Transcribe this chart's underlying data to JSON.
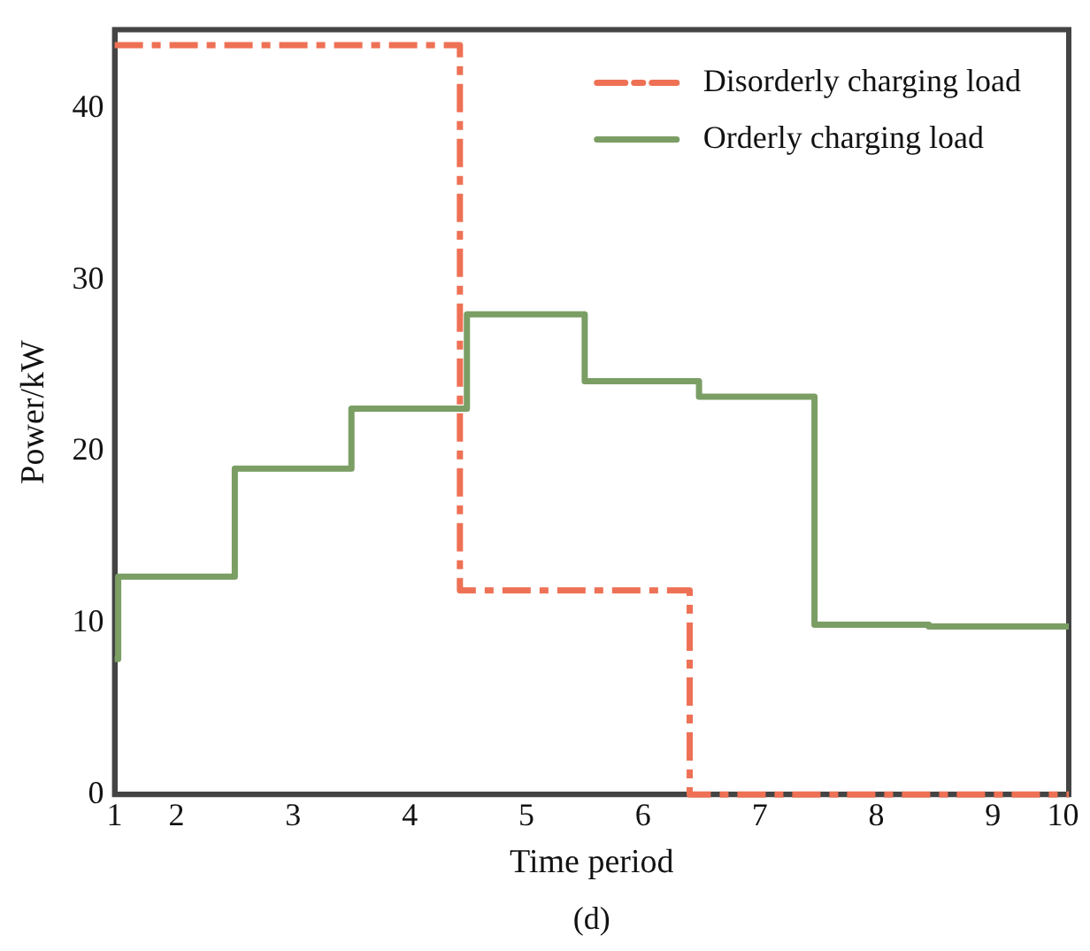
{
  "chart_data": {
    "type": "step",
    "xlabel": "Time period",
    "ylabel": "Power/kW",
    "annotations": [
      "(d)"
    ],
    "xlim": [
      1.47,
      9.65
    ],
    "xticks": [
      {
        "value": 1.47,
        "label": "1"
      },
      2,
      3,
      4,
      5,
      6,
      7,
      8,
      9,
      {
        "value": 9.6,
        "label": "10"
      }
    ],
    "ylim": [
      0,
      44.6
    ],
    "yticks": [
      0,
      10,
      20,
      30,
      40
    ],
    "grid": false,
    "legend": "top right",
    "marker": "none",
    "series": [
      {
        "name": "Disorderly charging load",
        "color": "#ee7155",
        "line_style": "dashdot",
        "x": [
          1.47,
          4.43,
          6.4,
          9.65
        ],
        "values": [
          43.7,
          11.9,
          0,
          0
        ]
      },
      {
        "name": "Orderly charging load",
        "color": "#7a9e64",
        "line_style": "solid",
        "x": [
          1.47,
          1.5,
          2.5,
          3.5,
          4.49,
          5.5,
          6.48,
          7.47,
          8.45,
          9.65
        ],
        "values": [
          7.9,
          12.7,
          19.0,
          22.5,
          28.0,
          24.1,
          23.2,
          9.9,
          9.8,
          9.8
        ]
      }
    ]
  }
}
